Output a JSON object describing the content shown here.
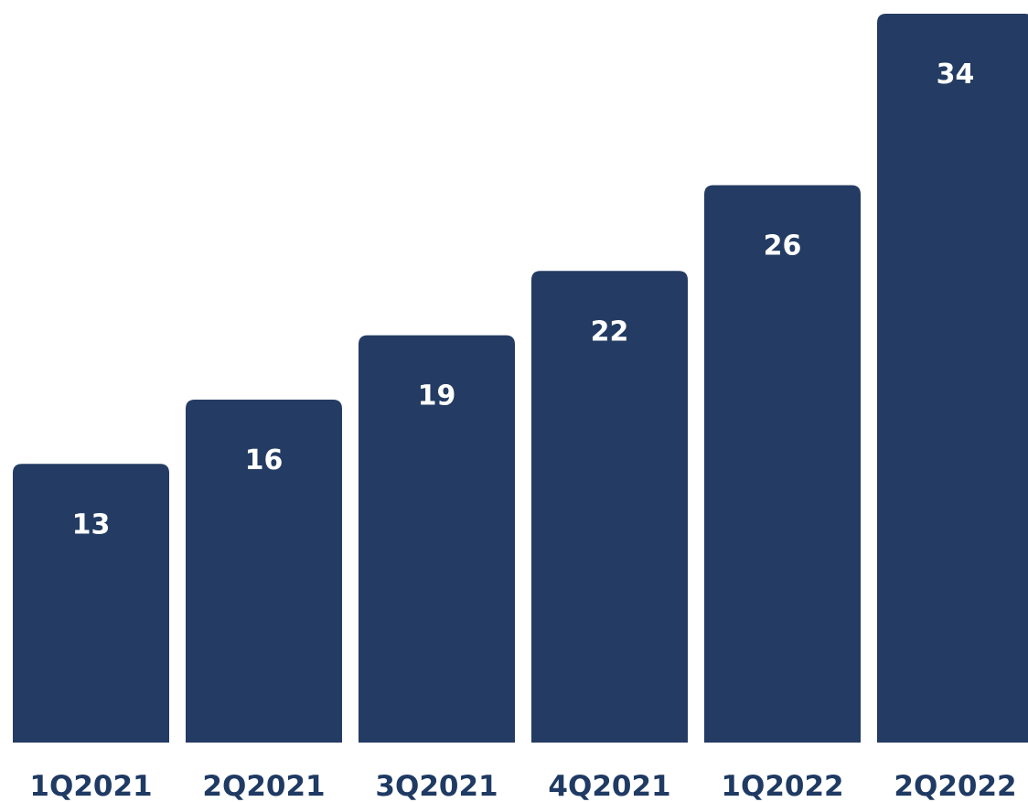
{
  "colors": {
    "bar": "#243c63",
    "background": "#ffffff",
    "label_text": "#ffffff",
    "category_text": "#1f3a63"
  },
  "chart_data": {
    "type": "bar",
    "title": "",
    "xlabel": "",
    "ylabel": "",
    "categories": [
      "1Q2021",
      "2Q2021",
      "3Q2021",
      "4Q2021",
      "1Q2022",
      "2Q2022"
    ],
    "values": [
      13,
      16,
      19,
      22,
      26,
      34
    ],
    "data_labels": [
      "13",
      "16",
      "19",
      "22",
      "26",
      "34"
    ],
    "ylim": [
      0,
      34
    ],
    "grid": false,
    "legend": "none"
  }
}
